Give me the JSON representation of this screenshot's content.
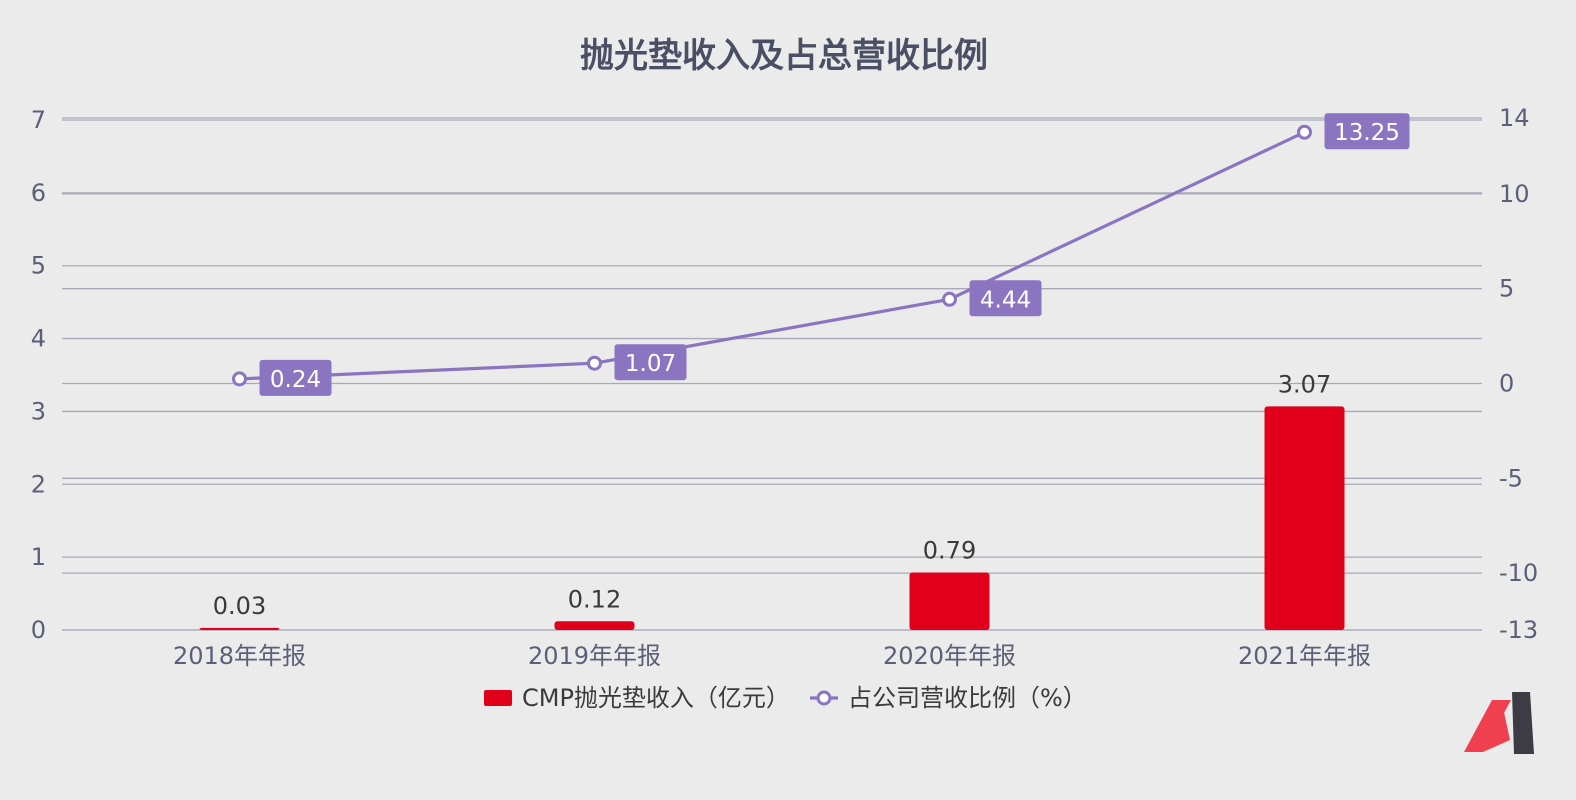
{
  "chart_data": {
    "type": "bar",
    "title": "抛光垫收入及占总营收比例",
    "categories": [
      "2018年年报",
      "2019年年报",
      "2020年年报",
      "2021年年报"
    ],
    "series": [
      {
        "name": "CMP抛光垫收入（亿元）",
        "type": "bar",
        "axis": "left",
        "color": "#e0001b",
        "values": [
          0.03,
          0.12,
          0.79,
          3.07
        ],
        "labels": [
          "0.03",
          "0.12",
          "0.79",
          "3.07"
        ]
      },
      {
        "name": "占公司营收比例（%）",
        "type": "line",
        "axis": "right",
        "color": "#8b74c0",
        "values": [
          0.24,
          1.07,
          4.44,
          13.25
        ],
        "labels": [
          "0.24",
          "1.07",
          "4.44",
          "13.25"
        ]
      }
    ],
    "y_left": {
      "min": 0,
      "max": 7,
      "ticks": [
        "0",
        "1",
        "2",
        "3",
        "4",
        "5",
        "6",
        "7"
      ]
    },
    "y_right": {
      "min": -13,
      "max": 14,
      "ticks": [
        {
          "value": -13,
          "label": "-13"
        },
        {
          "value": -10,
          "label": "-10"
        },
        {
          "value": -5,
          "label": "-5"
        },
        {
          "value": 0,
          "label": "0"
        },
        {
          "value": 5,
          "label": "5"
        },
        {
          "value": 10,
          "label": "10"
        },
        {
          "value": 14,
          "label": "14"
        }
      ]
    },
    "grid": true,
    "legend_position": "bottom"
  },
  "colors": {
    "background": "#ebebeb",
    "grid": "#a8aabb",
    "logo_red": "#f04050",
    "logo_dark": "#3c3c44"
  },
  "logo": {
    "icon": "brand-logo-icon"
  }
}
